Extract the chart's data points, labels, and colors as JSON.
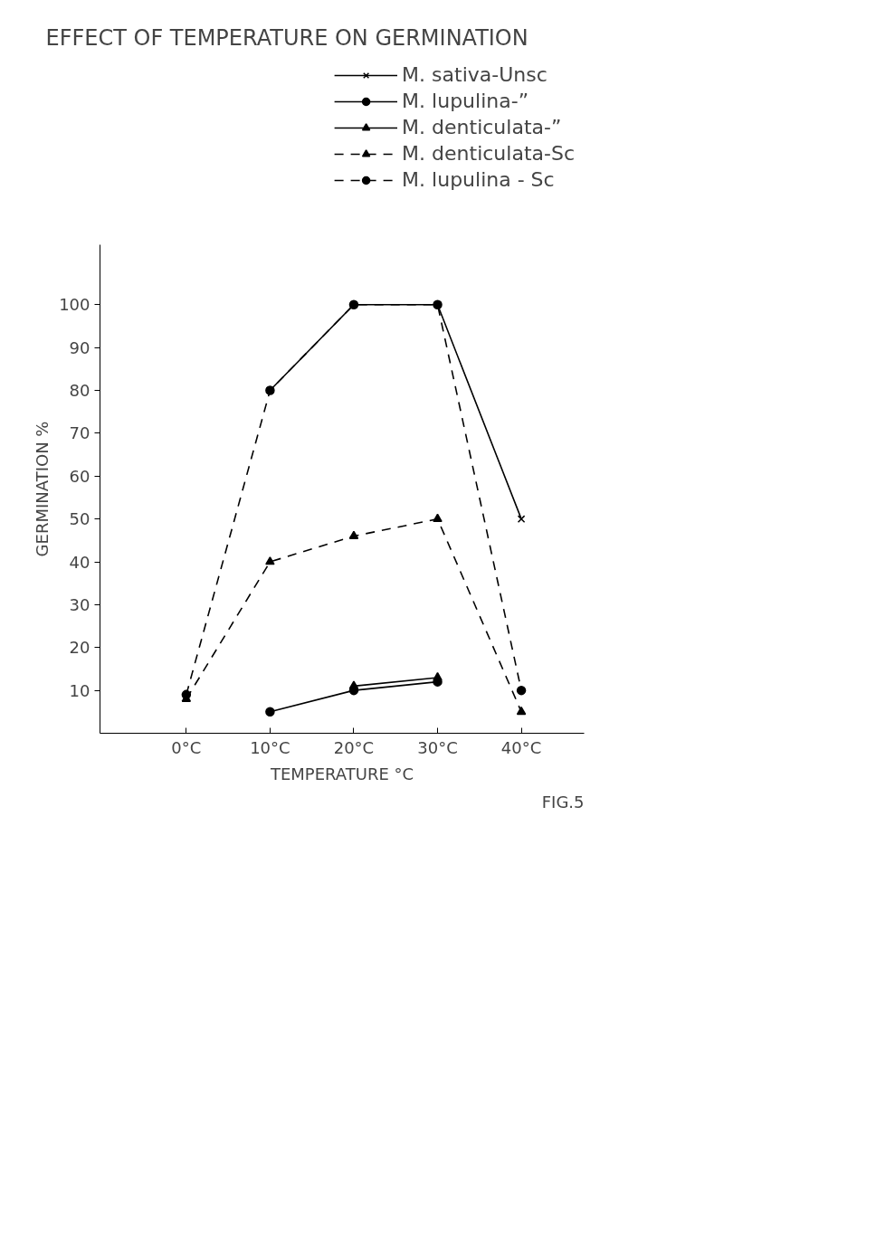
{
  "chart_data": {
    "type": "line",
    "title": "EFFECT OF TEMPERATURE ON GERMINATION",
    "xlabel": "TEMPERATURE °C",
    "ylabel": "GERMINATION %",
    "x": [
      0,
      10,
      20,
      30,
      40
    ],
    "series": [
      {
        "name": "M. sativa-Unsc",
        "color": "#000000",
        "marker": "cross",
        "line_style": "solid",
        "values": [
          null,
          80,
          100,
          100,
          50
        ]
      },
      {
        "name": "M. lupulina-”",
        "color": "#000000",
        "marker": "circle",
        "line_style": "solid",
        "values": [
          null,
          5,
          10,
          12,
          null
        ]
      },
      {
        "name": "M. denticulata-”",
        "color": "#000000",
        "marker": "triangle",
        "line_style": "solid",
        "values": [
          null,
          null,
          11,
          13,
          null
        ]
      },
      {
        "name": "M. denticulata-Sc",
        "color": "#000000",
        "marker": "triangle",
        "line_style": "dashed",
        "values": [
          8,
          40,
          46,
          50,
          5
        ]
      },
      {
        "name": "M. lupulina - Sc",
        "color": "#000000",
        "marker": "circle",
        "line_style": "dashed",
        "values": [
          9,
          80,
          100,
          100,
          10
        ]
      }
    ],
    "xlim": [
      -10.3,
      47.5
    ],
    "ylim": [
      0,
      114
    ],
    "xticks": [
      {
        "value": 0,
        "label": "0°C"
      },
      {
        "value": 10,
        "label": "10°C"
      },
      {
        "value": 20,
        "label": "20°C"
      },
      {
        "value": 30,
        "label": "30°C"
      },
      {
        "value": 40,
        "label": "40°C"
      }
    ],
    "yticks": [
      10,
      20,
      30,
      40,
      50,
      60,
      70,
      80,
      90,
      100
    ],
    "grid": false,
    "legend": "top right",
    "annotations": [
      "FIG.5"
    ]
  }
}
